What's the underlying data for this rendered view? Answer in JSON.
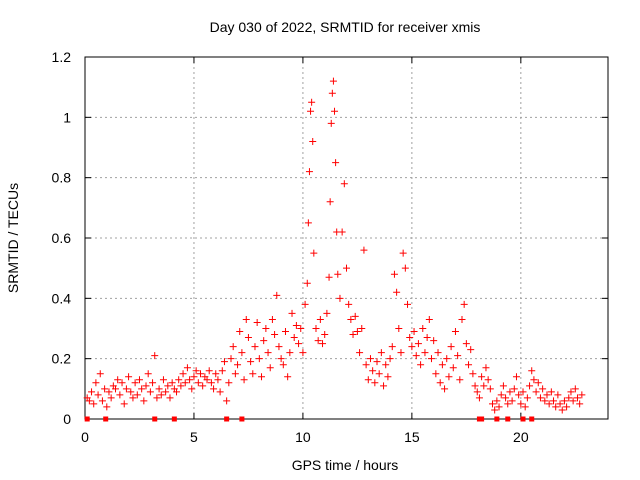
{
  "chart_data": {
    "type": "scatter",
    "title": "Day 030 of 2022, SRMTID for receiver xmis",
    "xlabel": "GPS time / hours",
    "ylabel": "SRMTID / TECUs",
    "xlim": [
      0,
      24
    ],
    "ylim": [
      0,
      1.2
    ],
    "grid": true,
    "marker": "+",
    "marker_color": "#ff0000",
    "x_ticks": [
      0,
      5,
      10,
      15,
      20
    ],
    "x_tick_labels": [
      "0",
      "5",
      "10",
      "15",
      "20"
    ],
    "y_ticks": [
      0,
      0.2,
      0.4,
      0.6,
      0.8,
      1.0,
      1.2
    ],
    "y_tick_labels": [
      "0",
      "0.2",
      "0.4",
      "0.6",
      "0.8",
      "1",
      "1.2"
    ],
    "series": [
      {
        "name": "SRMTID",
        "points": [
          [
            0.1,
            0.07
          ],
          [
            0.2,
            0.06
          ],
          [
            0.3,
            0.09
          ],
          [
            0.4,
            0.05
          ],
          [
            0.5,
            0.12
          ],
          [
            0.6,
            0.08
          ],
          [
            0.7,
            0.15
          ],
          [
            0.8,
            0.06
          ],
          [
            0.9,
            0.1
          ],
          [
            1.0,
            0.04
          ],
          [
            1.1,
            0.09
          ],
          [
            1.2,
            0.07
          ],
          [
            1.3,
            0.11
          ],
          [
            1.4,
            0.1
          ],
          [
            1.5,
            0.13
          ],
          [
            1.6,
            0.08
          ],
          [
            1.7,
            0.12
          ],
          [
            1.8,
            0.05
          ],
          [
            1.9,
            0.1
          ],
          [
            2.0,
            0.14
          ],
          [
            2.1,
            0.09
          ],
          [
            2.2,
            0.07
          ],
          [
            2.3,
            0.12
          ],
          [
            2.4,
            0.08
          ],
          [
            2.5,
            0.13
          ],
          [
            2.6,
            0.1
          ],
          [
            2.7,
            0.06
          ],
          [
            2.8,
            0.11
          ],
          [
            2.9,
            0.15
          ],
          [
            3.0,
            0.09
          ],
          [
            3.1,
            0.12
          ],
          [
            3.2,
            0.21
          ],
          [
            3.3,
            0.07
          ],
          [
            3.4,
            0.1
          ],
          [
            3.5,
            0.08
          ],
          [
            3.6,
            0.13
          ],
          [
            3.7,
            0.09
          ],
          [
            3.8,
            0.11
          ],
          [
            3.9,
            0.07
          ],
          [
            4.0,
            0.12
          ],
          [
            4.1,
            0.1
          ],
          [
            4.2,
            0.09
          ],
          [
            4.3,
            0.13
          ],
          [
            4.4,
            0.11
          ],
          [
            4.5,
            0.15
          ],
          [
            4.6,
            0.12
          ],
          [
            4.7,
            0.17
          ],
          [
            4.8,
            0.13
          ],
          [
            4.9,
            0.1
          ],
          [
            5.0,
            0.14
          ],
          [
            5.1,
            0.16
          ],
          [
            5.2,
            0.12
          ],
          [
            5.3,
            0.15
          ],
          [
            5.4,
            0.11
          ],
          [
            5.5,
            0.14
          ],
          [
            5.6,
            0.13
          ],
          [
            5.7,
            0.16
          ],
          [
            5.8,
            0.12
          ],
          [
            5.9,
            0.1
          ],
          [
            6.0,
            0.15
          ],
          [
            6.1,
            0.13
          ],
          [
            6.2,
            0.09
          ],
          [
            6.3,
            0.16
          ],
          [
            6.4,
            0.19
          ],
          [
            6.5,
            0.06
          ],
          [
            6.6,
            0.12
          ],
          [
            6.7,
            0.2
          ],
          [
            6.8,
            0.24
          ],
          [
            6.9,
            0.15
          ],
          [
            7.0,
            0.18
          ],
          [
            7.1,
            0.29
          ],
          [
            7.2,
            0.22
          ],
          [
            7.3,
            0.13
          ],
          [
            7.4,
            0.33
          ],
          [
            7.5,
            0.27
          ],
          [
            7.6,
            0.19
          ],
          [
            7.7,
            0.15
          ],
          [
            7.8,
            0.24
          ],
          [
            7.9,
            0.32
          ],
          [
            8.0,
            0.2
          ],
          [
            8.1,
            0.14
          ],
          [
            8.2,
            0.26
          ],
          [
            8.3,
            0.3
          ],
          [
            8.4,
            0.22
          ],
          [
            8.5,
            0.17
          ],
          [
            8.6,
            0.33
          ],
          [
            8.7,
            0.28
          ],
          [
            8.8,
            0.41
          ],
          [
            8.9,
            0.24
          ],
          [
            9.0,
            0.2
          ],
          [
            9.1,
            0.18
          ],
          [
            9.2,
            0.29
          ],
          [
            9.3,
            0.14
          ],
          [
            9.4,
            0.22
          ],
          [
            9.5,
            0.35
          ],
          [
            9.6,
            0.27
          ],
          [
            9.7,
            0.31
          ],
          [
            9.8,
            0.25
          ],
          [
            9.9,
            0.3
          ],
          [
            10.0,
            0.22
          ],
          [
            10.1,
            0.38
          ],
          [
            10.2,
            0.45
          ],
          [
            10.25,
            0.65
          ],
          [
            10.3,
            0.82
          ],
          [
            10.35,
            1.02
          ],
          [
            10.4,
            1.05
          ],
          [
            10.45,
            0.92
          ],
          [
            10.5,
            0.55
          ],
          [
            10.6,
            0.3
          ],
          [
            10.7,
            0.26
          ],
          [
            10.8,
            0.33
          ],
          [
            10.9,
            0.25
          ],
          [
            11.0,
            0.28
          ],
          [
            11.1,
            0.35
          ],
          [
            11.2,
            0.47
          ],
          [
            11.25,
            0.72
          ],
          [
            11.3,
            0.98
          ],
          [
            11.35,
            1.08
          ],
          [
            11.4,
            1.12
          ],
          [
            11.45,
            1.02
          ],
          [
            11.5,
            0.85
          ],
          [
            11.55,
            0.62
          ],
          [
            11.6,
            0.48
          ],
          [
            11.7,
            0.4
          ],
          [
            11.8,
            0.62
          ],
          [
            11.9,
            0.78
          ],
          [
            12.0,
            0.5
          ],
          [
            12.1,
            0.38
          ],
          [
            12.2,
            0.33
          ],
          [
            12.3,
            0.28
          ],
          [
            12.4,
            0.34
          ],
          [
            12.5,
            0.29
          ],
          [
            12.6,
            0.22
          ],
          [
            12.7,
            0.3
          ],
          [
            12.8,
            0.56
          ],
          [
            12.9,
            0.18
          ],
          [
            13.0,
            0.13
          ],
          [
            13.1,
            0.2
          ],
          [
            13.2,
            0.16
          ],
          [
            13.3,
            0.12
          ],
          [
            13.4,
            0.19
          ],
          [
            13.5,
            0.15
          ],
          [
            13.6,
            0.22
          ],
          [
            13.7,
            0.11
          ],
          [
            13.8,
            0.18
          ],
          [
            13.9,
            0.14
          ],
          [
            14.0,
            0.2
          ],
          [
            14.1,
            0.24
          ],
          [
            14.2,
            0.48
          ],
          [
            14.3,
            0.42
          ],
          [
            14.4,
            0.3
          ],
          [
            14.5,
            0.22
          ],
          [
            14.6,
            0.55
          ],
          [
            14.7,
            0.5
          ],
          [
            14.8,
            0.38
          ],
          [
            14.9,
            0.27
          ],
          [
            15.0,
            0.24
          ],
          [
            15.1,
            0.29
          ],
          [
            15.2,
            0.21
          ],
          [
            15.3,
            0.25
          ],
          [
            15.4,
            0.18
          ],
          [
            15.5,
            0.3
          ],
          [
            15.6,
            0.22
          ],
          [
            15.7,
            0.27
          ],
          [
            15.8,
            0.33
          ],
          [
            15.9,
            0.2
          ],
          [
            16.0,
            0.26
          ],
          [
            16.1,
            0.15
          ],
          [
            16.2,
            0.22
          ],
          [
            16.3,
            0.12
          ],
          [
            16.4,
            0.18
          ],
          [
            16.5,
            0.1
          ],
          [
            16.6,
            0.2
          ],
          [
            16.7,
            0.14
          ],
          [
            16.8,
            0.24
          ],
          [
            16.9,
            0.17
          ],
          [
            17.0,
            0.29
          ],
          [
            17.1,
            0.21
          ],
          [
            17.2,
            0.13
          ],
          [
            17.3,
            0.33
          ],
          [
            17.4,
            0.38
          ],
          [
            17.5,
            0.25
          ],
          [
            17.6,
            0.18
          ],
          [
            17.7,
            0.23
          ],
          [
            17.8,
            0.15
          ],
          [
            17.9,
            0.11
          ],
          [
            18.0,
            0.09
          ],
          [
            18.1,
            0.07
          ],
          [
            18.2,
            0.14
          ],
          [
            18.3,
            0.11
          ],
          [
            18.4,
            0.17
          ],
          [
            18.5,
            0.13
          ],
          [
            18.6,
            0.1
          ],
          [
            18.7,
            0.05
          ],
          [
            18.8,
            0.03
          ],
          [
            18.9,
            0.06
          ],
          [
            19.0,
            0.04
          ],
          [
            19.1,
            0.08
          ],
          [
            19.2,
            0.11
          ],
          [
            19.3,
            0.07
          ],
          [
            19.4,
            0.05
          ],
          [
            19.5,
            0.09
          ],
          [
            19.6,
            0.06
          ],
          [
            19.7,
            0.1
          ],
          [
            19.8,
            0.14
          ],
          [
            19.9,
            0.08
          ],
          [
            20.0,
            0.05
          ],
          [
            20.1,
            0.09
          ],
          [
            20.2,
            0.04
          ],
          [
            20.3,
            0.07
          ],
          [
            20.4,
            0.11
          ],
          [
            20.5,
            0.16
          ],
          [
            20.6,
            0.13
          ],
          [
            20.7,
            0.09
          ],
          [
            20.8,
            0.12
          ],
          [
            20.9,
            0.07
          ],
          [
            21.0,
            0.1
          ],
          [
            21.1,
            0.06
          ],
          [
            21.2,
            0.08
          ],
          [
            21.3,
            0.05
          ],
          [
            21.4,
            0.09
          ],
          [
            21.5,
            0.06
          ],
          [
            21.6,
            0.04
          ],
          [
            21.7,
            0.08
          ],
          [
            21.8,
            0.05
          ],
          [
            21.9,
            0.03
          ],
          [
            22.0,
            0.06
          ],
          [
            22.1,
            0.04
          ],
          [
            22.2,
            0.07
          ],
          [
            22.3,
            0.09
          ],
          [
            22.4,
            0.06
          ],
          [
            22.5,
            0.1
          ],
          [
            22.6,
            0.07
          ],
          [
            22.7,
            0.05
          ],
          [
            22.8,
            0.08
          ]
        ]
      },
      {
        "name": "zero-markers",
        "marker": "square",
        "points": [
          [
            0.1,
            0
          ],
          [
            0.95,
            0
          ],
          [
            3.2,
            0
          ],
          [
            4.1,
            0
          ],
          [
            6.5,
            0
          ],
          [
            7.2,
            0
          ],
          [
            18.1,
            0
          ],
          [
            18.2,
            0
          ],
          [
            18.9,
            0
          ],
          [
            19.4,
            0
          ],
          [
            20.1,
            0
          ],
          [
            20.5,
            0
          ]
        ]
      }
    ]
  }
}
